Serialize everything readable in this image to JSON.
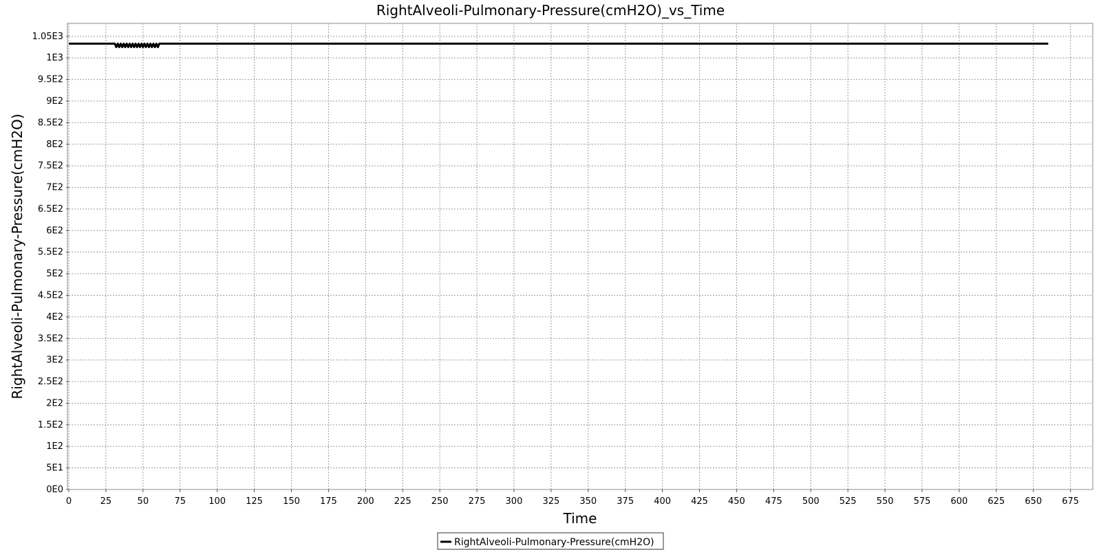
{
  "chart_data": {
    "type": "line",
    "title": "RightAlveoli-Pulmonary-Pressure(cmH2O)_vs_Time",
    "xlabel": "Time",
    "ylabel": "RightAlveoli-Pulmonary-Pressure(cmH2O)",
    "xlim": [
      0,
      690
    ],
    "ylim": [
      0,
      1080
    ],
    "x_ticks": [
      0,
      25,
      50,
      75,
      100,
      125,
      150,
      175,
      200,
      225,
      250,
      275,
      300,
      325,
      350,
      375,
      400,
      425,
      450,
      475,
      500,
      525,
      550,
      575,
      600,
      625,
      650,
      675
    ],
    "x_tick_labels": [
      "0",
      "25",
      "50",
      "75",
      "100",
      "125",
      "150",
      "175",
      "200",
      "225",
      "250",
      "275",
      "300",
      "325",
      "350",
      "375",
      "400",
      "425",
      "450",
      "475",
      "500",
      "525",
      "550",
      "575",
      "600",
      "625",
      "650",
      "675"
    ],
    "y_ticks": [
      0,
      50,
      100,
      150,
      200,
      250,
      300,
      350,
      400,
      450,
      500,
      550,
      600,
      650,
      700,
      750,
      800,
      850,
      900,
      950,
      1000,
      1050
    ],
    "y_tick_labels": [
      "0E0",
      "5E1",
      "1E2",
      "1.5E2",
      "2E2",
      "2.5E2",
      "3E2",
      "3.5E2",
      "4E2",
      "4.5E2",
      "5E2",
      "5.5E2",
      "6E2",
      "6.5E2",
      "7E2",
      "7.5E2",
      "8E2",
      "8.5E2",
      "9E2",
      "9.5E2",
      "1E3",
      "1.05E3"
    ],
    "grid": true,
    "legend_position": "bottom-center",
    "series": [
      {
        "name": "RightAlveoli-Pulmonary-Pressure(cmH2O)",
        "color": "#000000",
        "x": [
          0,
          31,
          32,
          33,
          34,
          35,
          36,
          37,
          38,
          39,
          40,
          41,
          42,
          43,
          44,
          45,
          46,
          47,
          48,
          49,
          50,
          51,
          52,
          53,
          54,
          55,
          56,
          57,
          58,
          59,
          60,
          61,
          100,
          200,
          300,
          400,
          500,
          600,
          660
        ],
        "y": [
          1033,
          1033,
          1025,
          1033,
          1025,
          1033,
          1025,
          1033,
          1025,
          1033,
          1025,
          1033,
          1025,
          1033,
          1025,
          1033,
          1025,
          1033,
          1025,
          1033,
          1025,
          1033,
          1025,
          1033,
          1025,
          1033,
          1025,
          1033,
          1025,
          1033,
          1025,
          1033,
          1033,
          1033,
          1033,
          1033,
          1033,
          1033,
          1033
        ]
      }
    ]
  }
}
